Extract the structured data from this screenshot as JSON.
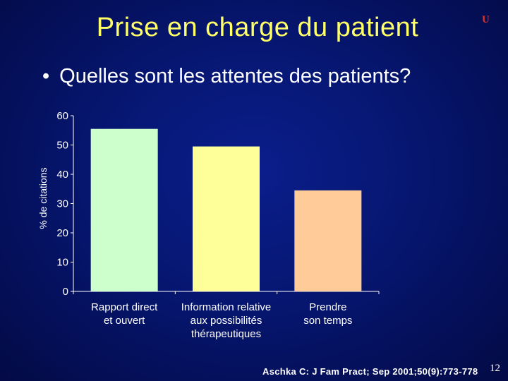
{
  "slide": {
    "title": "Prise en charge du patient",
    "logo_text": "U",
    "bullet": "Quelles sont les attentes des patients?",
    "source": "Aschka C: J Fam Pract; Sep 2001;50(9):773-778",
    "page_number": "12"
  },
  "chart_data": {
    "type": "bar",
    "categories": [
      [
        "Rapport direct",
        "et ouvert"
      ],
      [
        "Information relative",
        "aux possibilités",
        "thérapeutiques"
      ],
      [
        "Prendre",
        "son temps"
      ]
    ],
    "values": [
      55.5,
      49.5,
      34.5
    ],
    "colors": [
      "#ccffcc",
      "#ffff99",
      "#ffcc99"
    ],
    "ylabel": "% de citations",
    "ylim": [
      0,
      60
    ],
    "yticks": [
      0,
      10,
      20,
      30,
      40,
      50,
      60
    ],
    "grid": false
  }
}
